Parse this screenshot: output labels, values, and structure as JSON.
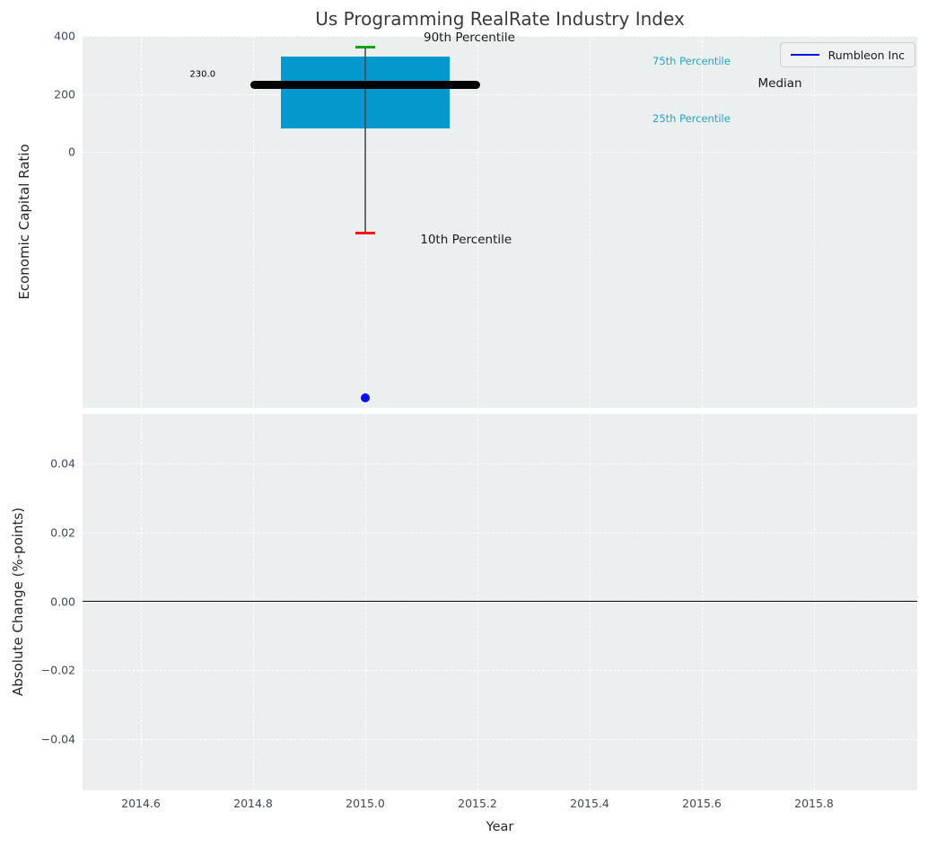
{
  "figure": {
    "title": "Us Programming RealRate Industry Index",
    "xlabel": "Year",
    "background": "#ffffff",
    "axes_background": "#eceff0",
    "gridline_color": "rgba(255,255,255,0.92)",
    "tick_label_color": "#3d4a5d"
  },
  "legend": {
    "label": "Rumbleon Inc",
    "line_color": "#0d0de8",
    "position": "upper right"
  },
  "chart_data": [
    {
      "type": "box",
      "title": "Us Programming RealRate Industry Index",
      "ylabel": "Economic Capital Ratio",
      "xlim": [
        2014.496,
        2015.984
      ],
      "ylim": [
        -883,
        400
      ],
      "grid": "white dashed, on",
      "x_ticks": {
        "values": [
          2014.6,
          2014.8,
          2015.0,
          2015.2,
          2015.4,
          2015.6,
          2015.8
        ],
        "labels": [
          "2014.6",
          "2014.8",
          "2015.0",
          "2015.2",
          "2015.4",
          "2015.6",
          "2015.8"
        ]
      },
      "y_ticks": {
        "values": [
          400,
          200,
          0
        ],
        "labels": [
          "400",
          "200",
          "0"
        ]
      },
      "box": {
        "x": 2015.0,
        "p90": 360,
        "p75": 330,
        "median": 230,
        "p25": 80,
        "p10": -280,
        "box_half_width": 0.15,
        "median_half_width": 0.205,
        "cap_half_width": 0.018,
        "box_color": "#0499cc",
        "median_color": "#000000",
        "median_thickness": 9,
        "p90_cap_color": "#12a312",
        "p10_cap_color": "#ff1414",
        "whisker_color": "#4a4a4a"
      },
      "company_point": {
        "name": "Rumbleon Inc",
        "x": 2015.0,
        "y": -850,
        "color": "#0d0de8",
        "diameter": 10
      },
      "annotations": [
        {
          "text": "230.0",
          "x": 2014.71,
          "y": 267,
          "color": "#000000",
          "size": 10,
          "ha": "center"
        },
        {
          "text": "90th Percentile",
          "x": 2015.104,
          "y": 394,
          "color": "#1a1a1a",
          "size": 13.5,
          "ha": "left"
        },
        {
          "text": "10th Percentile",
          "x": 2015.098,
          "y": -304,
          "color": "#1a1a1a",
          "size": 13.5,
          "ha": "left"
        },
        {
          "text": "75th Percentile",
          "x": 2015.512,
          "y": 313,
          "color": "#25a3c9",
          "size": 11.5,
          "ha": "left"
        },
        {
          "text": "Median",
          "x": 2015.7,
          "y": 236,
          "color": "#1a1a1a",
          "size": 13.5,
          "ha": "left"
        },
        {
          "text": "25th Percentile",
          "x": 2015.512,
          "y": 115,
          "color": "#25a3c9",
          "size": 11.5,
          "ha": "left"
        }
      ]
    },
    {
      "type": "line",
      "title": "",
      "ylabel": "Absolute Change (%-points)",
      "xlabel": "Year",
      "xlim": [
        2014.496,
        2015.984
      ],
      "ylim": [
        -0.055,
        0.0545
      ],
      "grid": "white dashed, on",
      "x_ticks": {
        "values": [
          2014.6,
          2014.8,
          2015.0,
          2015.2,
          2015.4,
          2015.6,
          2015.8
        ],
        "labels": [
          "2014.6",
          "2014.8",
          "2015.0",
          "2015.2",
          "2015.4",
          "2015.6",
          "2015.8"
        ]
      },
      "y_ticks": {
        "values": [
          0.04,
          0.02,
          0.0,
          -0.02,
          -0.04
        ],
        "labels": [
          "0.04",
          "0.02",
          "0.00",
          "−0.02",
          "−0.04"
        ]
      },
      "zero_line": {
        "y": 0.0,
        "color": "#000000",
        "thickness": 1.6
      },
      "series": []
    }
  ]
}
